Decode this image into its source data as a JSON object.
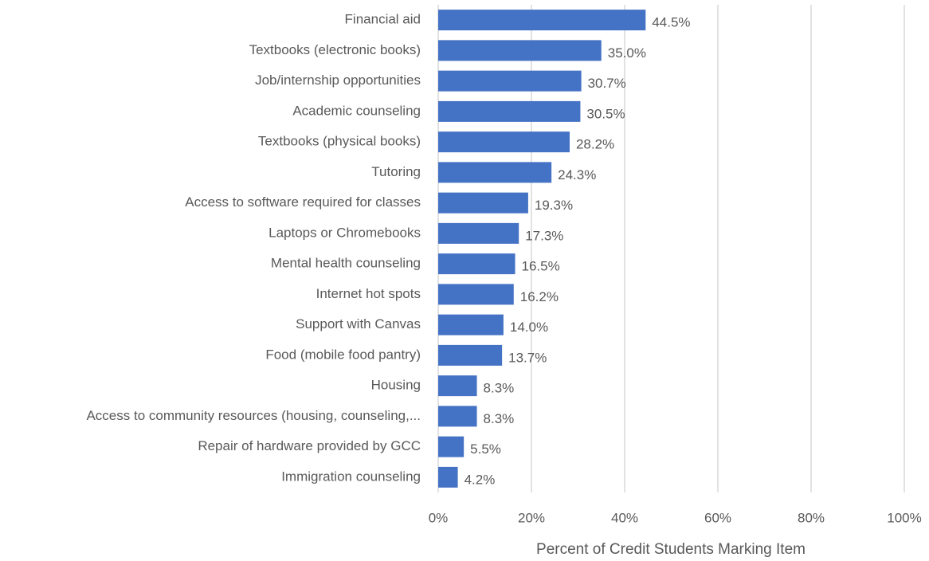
{
  "chart_data": {
    "type": "bar",
    "orientation": "horizontal",
    "x_label": "Percent of Credit Students Marking Item",
    "categories": [
      "Financial aid",
      "Textbooks (electronic books)",
      "Job/internship opportunities",
      "Academic counseling",
      "Textbooks (physical books)",
      "Tutoring",
      "Access to software required for classes",
      "Laptops or Chromebooks",
      "Mental health counseling",
      "Internet hot spots",
      "Support with Canvas",
      "Food (mobile food pantry)",
      "Housing",
      "Access to community resources (housing, counseling,...",
      "Repair of hardware provided by GCC",
      "Immigration counseling"
    ],
    "values": [
      44.5,
      35.0,
      30.7,
      30.5,
      28.2,
      24.3,
      19.3,
      17.3,
      16.5,
      16.2,
      14.0,
      13.7,
      8.3,
      8.3,
      5.5,
      4.2
    ],
    "value_labels": [
      "44.5%",
      "35.0%",
      "30.7%",
      "30.5%",
      "28.2%",
      "24.3%",
      "19.3%",
      "17.3%",
      "16.5%",
      "16.2%",
      "14.0%",
      "13.7%",
      "8.3%",
      "8.3%",
      "5.5%",
      "4.2%"
    ],
    "color": "#4472c4",
    "xlim": [
      0,
      100
    ],
    "xticks": [
      {
        "value": 0,
        "label": "0%"
      },
      {
        "value": 20,
        "label": "20%"
      },
      {
        "value": 40,
        "label": "40%"
      },
      {
        "value": 60,
        "label": "60%"
      },
      {
        "value": 80,
        "label": "80%"
      },
      {
        "value": 100,
        "label": "100%"
      }
    ],
    "grid": true
  }
}
